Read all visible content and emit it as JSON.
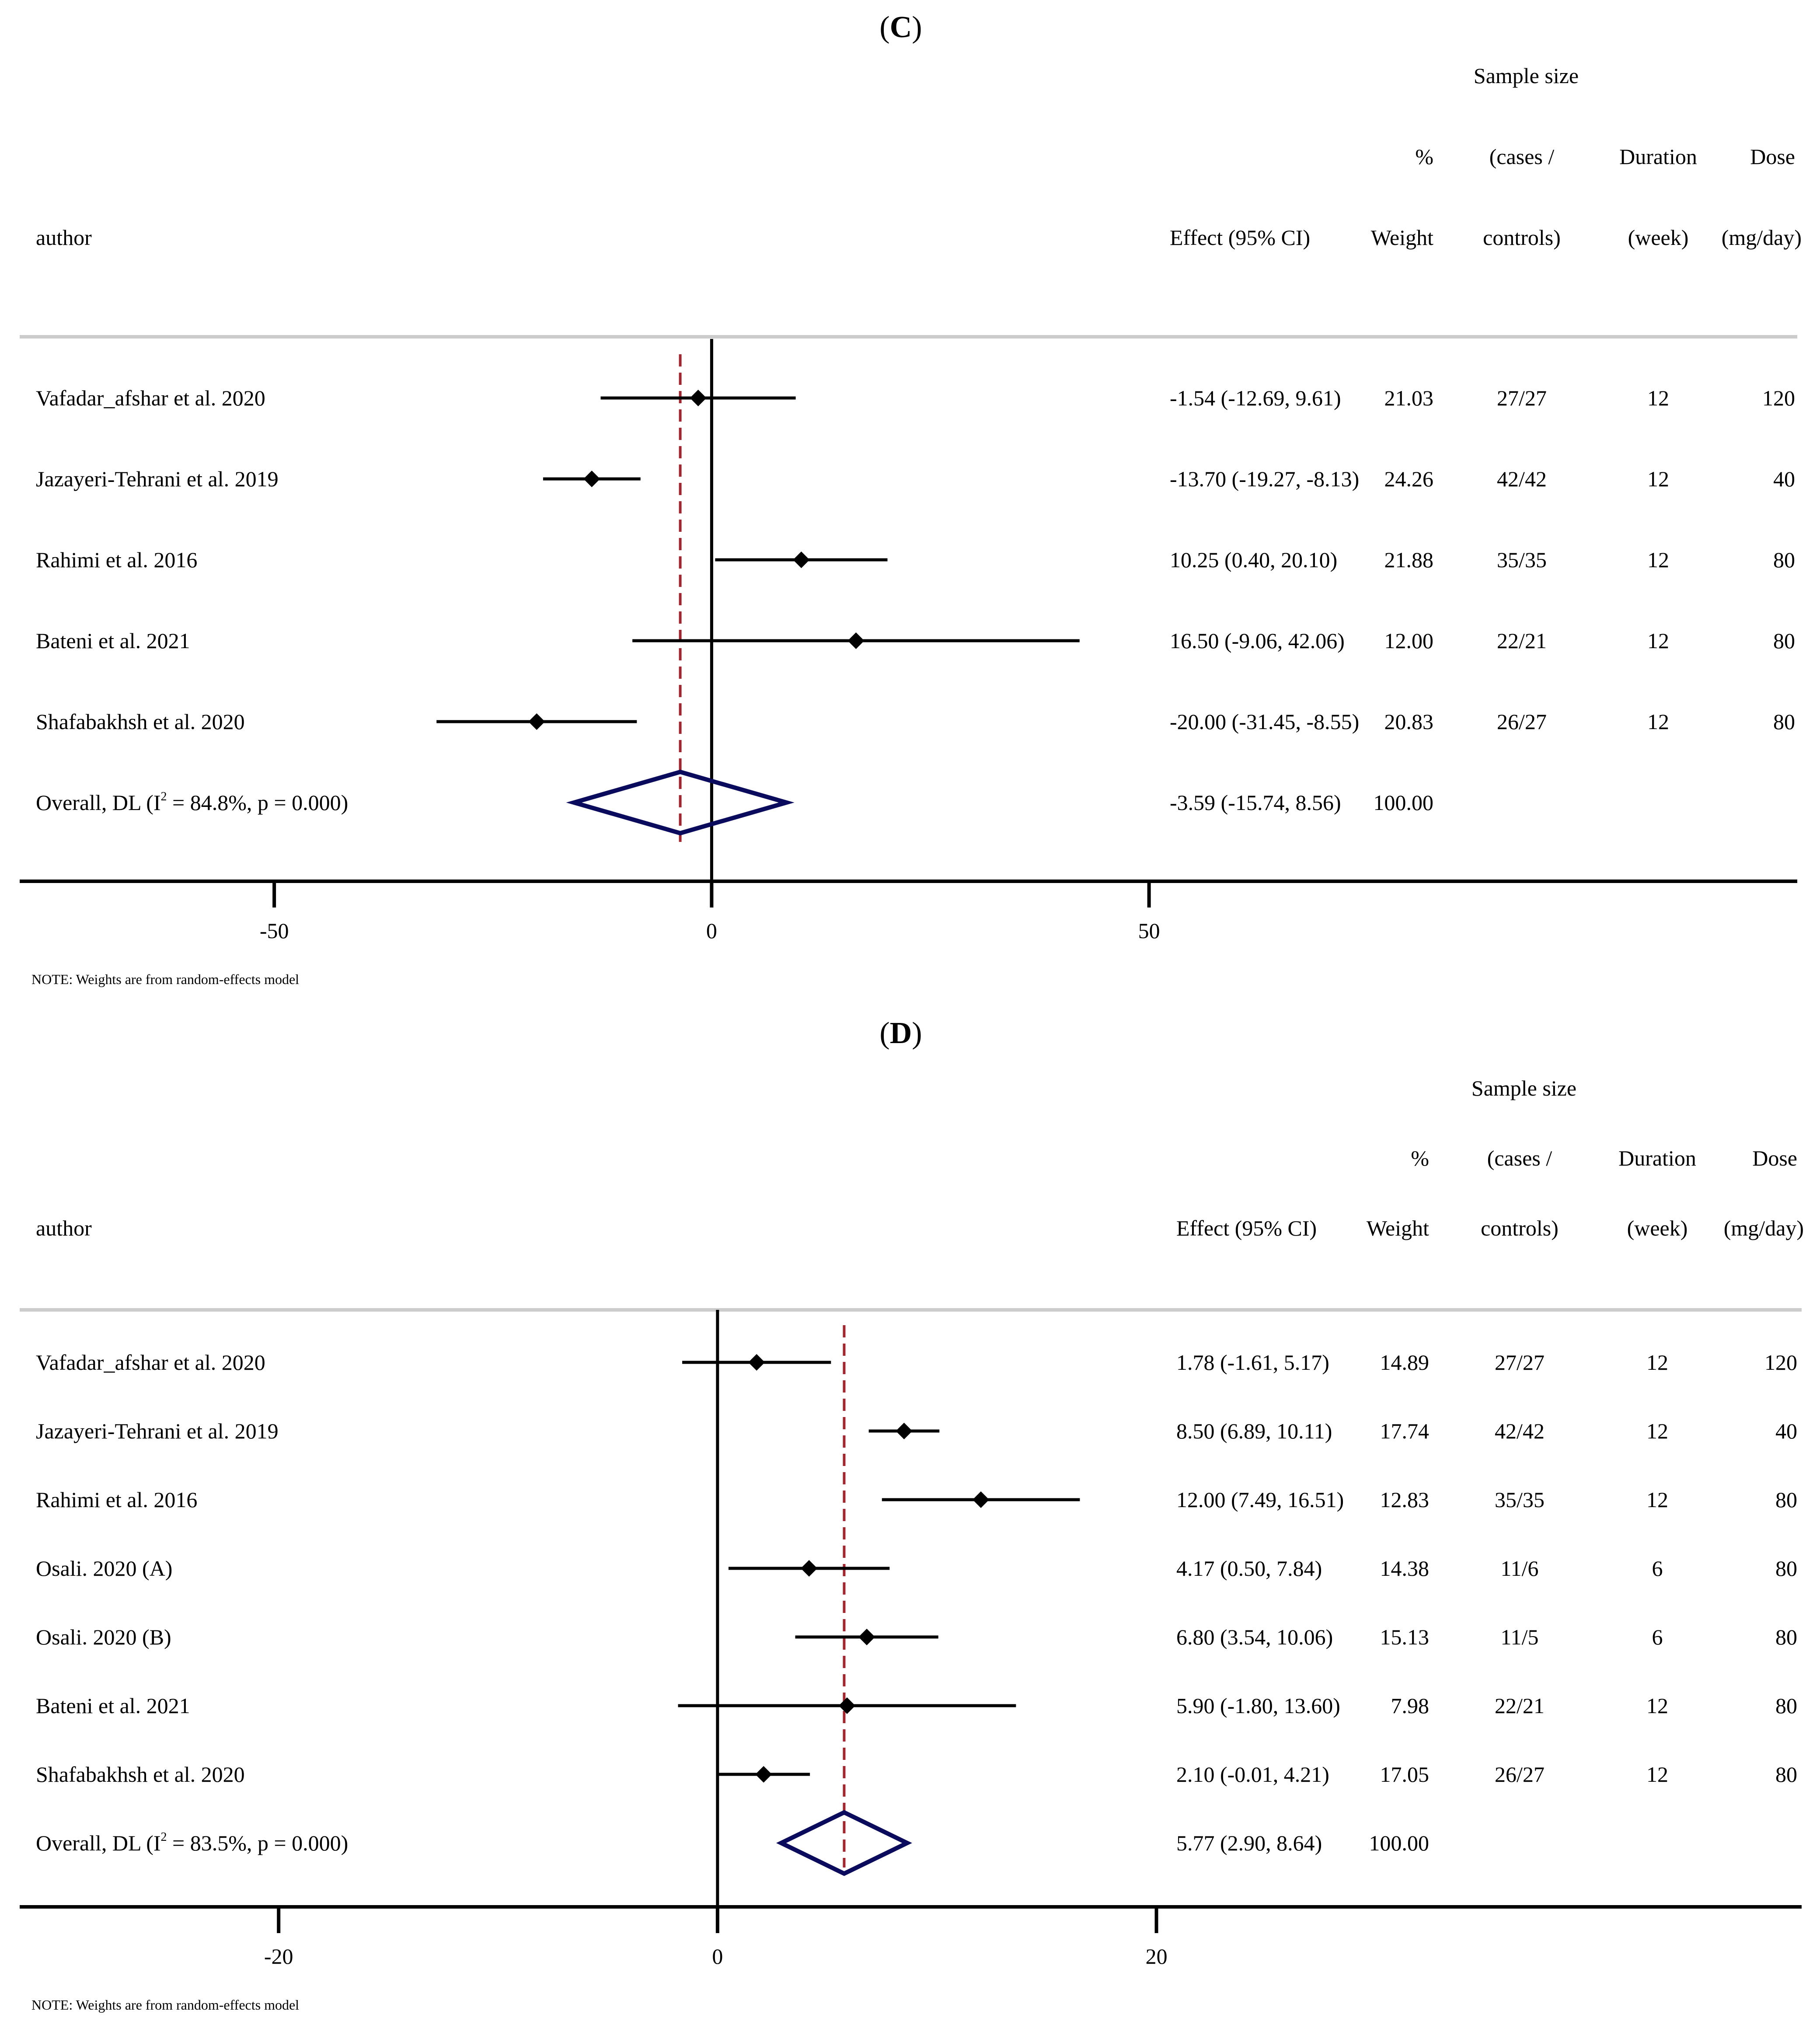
{
  "chart_data": [
    {
      "type": "forest",
      "panel_label": "C",
      "header": {
        "author": "author",
        "effect": "Effect (95% CI)",
        "weight": [
          "%",
          "Weight"
        ],
        "sample": [
          "Sample size",
          "(cases /",
          "controls)"
        ],
        "duration": [
          "Duration",
          "(week)"
        ],
        "dose": [
          "Dose",
          "(mg/day)"
        ]
      },
      "studies": [
        {
          "author": "Vafadar_afshar et al. 2020",
          "effect": -1.54,
          "lo": -12.69,
          "hi": 9.61,
          "effect_text": "-1.54 (-12.69, 9.61)",
          "weight": "21.03",
          "sample": "27/27",
          "duration": "12",
          "dose": "120"
        },
        {
          "author": "Jazayeri-Tehrani et al. 2019",
          "effect": -13.7,
          "lo": -19.27,
          "hi": -8.13,
          "effect_text": "-13.70 (-19.27, -8.13)",
          "weight": "24.26",
          "sample": "42/42",
          "duration": "12",
          "dose": "40"
        },
        {
          "author": "Rahimi et al. 2016",
          "effect": 10.25,
          "lo": 0.4,
          "hi": 20.1,
          "effect_text": "10.25 (0.40, 20.10)",
          "weight": "21.88",
          "sample": "35/35",
          "duration": "12",
          "dose": "80"
        },
        {
          "author": "Bateni et al. 2021",
          "effect": 16.5,
          "lo": -9.06,
          "hi": 42.06,
          "effect_text": "16.50 (-9.06, 42.06)",
          "weight": "12.00",
          "sample": "22/21",
          "duration": "12",
          "dose": "80"
        },
        {
          "author": "Shafabakhsh et al. 2020",
          "effect": -20.0,
          "lo": -31.45,
          "hi": -8.55,
          "effect_text": "-20.00 (-31.45, -8.55)",
          "weight": "20.83",
          "sample": "26/27",
          "duration": "12",
          "dose": "80"
        }
      ],
      "overall": {
        "label_pre": "Overall, DL (I",
        "label_sup": "2",
        "label_post": " = 84.8%, p = 0.000)",
        "effect": -3.59,
        "lo": -15.74,
        "hi": 8.56,
        "effect_text": "-3.59 (-15.74, 8.56)",
        "weight": "100.00"
      },
      "xlim": [
        -79.1,
        124.1
      ],
      "xticks": [
        -50,
        0,
        50
      ],
      "xtick_labels": [
        "-50",
        "0",
        "50"
      ],
      "note": "NOTE: Weights are from random-effects model"
    },
    {
      "type": "forest",
      "panel_label": "D",
      "header": {
        "author": "author",
        "effect": "Effect (95% CI)",
        "weight": [
          "%",
          "Weight"
        ],
        "sample": [
          "Sample size",
          "(cases /",
          "controls)"
        ],
        "duration": [
          "Duration",
          "(week)"
        ],
        "dose": [
          "Dose",
          "(mg/day)"
        ]
      },
      "studies": [
        {
          "author": "Vafadar_afshar et al. 2020",
          "effect": 1.78,
          "lo": -1.61,
          "hi": 5.17,
          "effect_text": "1.78 (-1.61, 5.17)",
          "weight": "14.89",
          "sample": "27/27",
          "duration": "12",
          "dose": "120"
        },
        {
          "author": "Jazayeri-Tehrani et al. 2019",
          "effect": 8.5,
          "lo": 6.89,
          "hi": 10.11,
          "effect_text": "8.50 (6.89, 10.11)",
          "weight": "17.74",
          "sample": "42/42",
          "duration": "12",
          "dose": "40"
        },
        {
          "author": "Rahimi et al. 2016",
          "effect": 12.0,
          "lo": 7.49,
          "hi": 16.51,
          "effect_text": "12.00 (7.49, 16.51)",
          "weight": "12.83",
          "sample": "35/35",
          "duration": "12",
          "dose": "80"
        },
        {
          "author": "Osali. 2020 (A)",
          "effect": 4.17,
          "lo": 0.5,
          "hi": 7.84,
          "effect_text": "4.17 (0.50, 7.84)",
          "weight": "14.38",
          "sample": "11/6",
          "duration": "6",
          "dose": "80"
        },
        {
          "author": "Osali. 2020 (B)",
          "effect": 6.8,
          "lo": 3.54,
          "hi": 10.06,
          "effect_text": "6.80 (3.54, 10.06)",
          "weight": "15.13",
          "sample": "11/5",
          "duration": "6",
          "dose": "80"
        },
        {
          "author": "Bateni et al. 2021",
          "effect": 5.9,
          "lo": -1.8,
          "hi": 13.6,
          "effect_text": "5.90 (-1.80, 13.60)",
          "weight": "7.98",
          "sample": "22/21",
          "duration": "12",
          "dose": "80"
        },
        {
          "author": "Shafabakhsh et al. 2020",
          "effect": 2.1,
          "lo": -0.01,
          "hi": 4.21,
          "effect_text": "2.10 (-0.01, 4.21)",
          "weight": "17.05",
          "sample": "26/27",
          "duration": "12",
          "dose": "80"
        }
      ],
      "overall": {
        "label_pre": "Overall, DL (I",
        "label_sup": "2",
        "label_post": " = 83.5%, p = 0.000)",
        "effect": 5.77,
        "lo": 2.9,
        "hi": 8.64,
        "effect_text": "5.77 (2.90, 8.64)",
        "weight": "100.00"
      },
      "xlim": [
        -31.8,
        49.4
      ],
      "xticks": [
        -20,
        0,
        20
      ],
      "xtick_labels": [
        "-20",
        "0",
        "20"
      ],
      "note": "NOTE: Weights are from random-effects model"
    }
  ]
}
